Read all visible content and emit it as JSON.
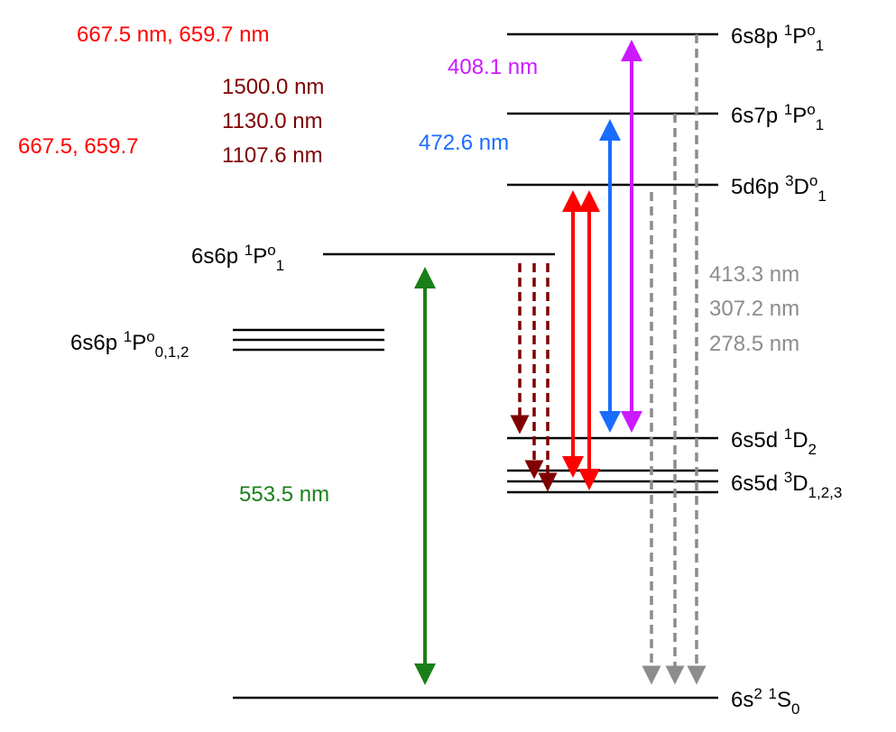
{
  "colors": {
    "red": "#ff0000",
    "dark_red": "#7f0000",
    "blue": "#1a6cff",
    "magenta": "#cc1aff",
    "green": "#1a7f1a",
    "gray": "#8c8c8c",
    "black": "#000000"
  },
  "levels": {
    "ground": {
      "main": "6s",
      "sup1": "2",
      "mid": " ",
      "sup2": "1",
      "letter": "S",
      "sub": "0"
    },
    "s5d_3D": {
      "main": "6s5d ",
      "sup1": "3",
      "letter": "D",
      "sub": "1,2,3"
    },
    "s5d_1D2": {
      "main": "6s5d ",
      "sup1": "1",
      "letter": "D",
      "sub": "2"
    },
    "d6p_3D1": {
      "main": "5d6p ",
      "sup1": "3",
      "letter": "D",
      "sup2": "o",
      "sub": "1"
    },
    "s7p_1P1": {
      "main": "6s7p ",
      "sup1": "1",
      "letter": "P",
      "sup2": "o",
      "sub": "1"
    },
    "s8p_1P1": {
      "main": "6s8p ",
      "sup1": "1",
      "letter": "P",
      "sup2": "o",
      "sub": "1"
    },
    "s6p_1P1": {
      "main": "6s6p ",
      "sup1": "1",
      "letter": "P",
      "sup2": "o",
      "sub": "1"
    },
    "s6p_triplet": {
      "main": "6s6p ",
      "sup1": "1",
      "letter": "P",
      "sup2": "o",
      "sub": "0,1,2"
    }
  },
  "wavelengths": {
    "red_top": "667.5 nm, 659.7 nm",
    "red_left": "667.5, 659.7",
    "dark_red": [
      "1500.0 nm",
      "1130.0 nm",
      "1107.6 nm"
    ],
    "magenta": "408.1 nm",
    "blue": "472.6 nm",
    "green": "553.5 nm",
    "gray": [
      "413.3 nm",
      "307.2 nm",
      "278.5 nm"
    ]
  }
}
